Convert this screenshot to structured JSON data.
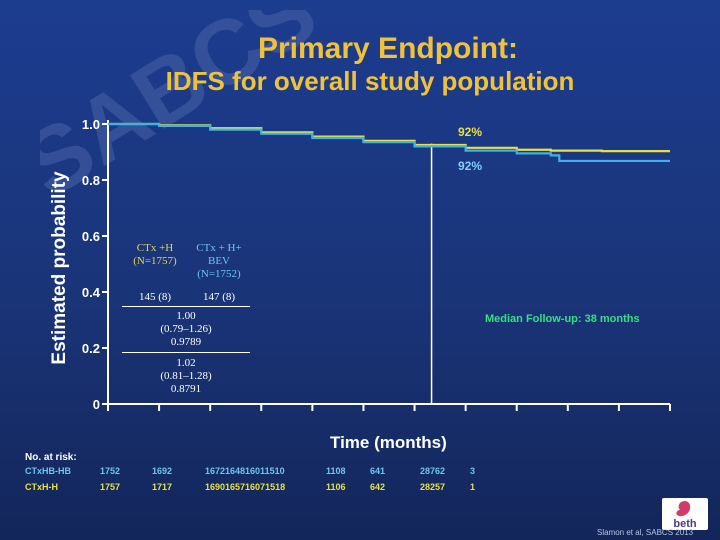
{
  "slide": {
    "title": "Primary Endpoint:",
    "subtitle": "IDFS for overall study population",
    "watermark": "SABCS",
    "credit": "Slamon et al, SABCS 2013",
    "logo_text": "beth"
  },
  "colors": {
    "background": "#1c3c8f",
    "title": "#f0c23a",
    "series_h": "#e8e040",
    "series_bev": "#40b0e8",
    "median_text": "#36e080"
  },
  "chart_data": {
    "type": "line",
    "title": "",
    "xlabel": "Time (months)",
    "ylabel": "Estimated probability",
    "xlim": [
      0,
      66
    ],
    "ylim": [
      0,
      1.0
    ],
    "y_ticks": [
      "0",
      "0.2",
      "0.4",
      "0.6",
      "0.8",
      "1.0"
    ],
    "x_tick_values": [
      0,
      6,
      12,
      18,
      24,
      30,
      36,
      42,
      48,
      54,
      60,
      66
    ],
    "grid": false,
    "series": [
      {
        "name": "CTx +H",
        "color": "#e8e040",
        "x": [
          0,
          3,
          6,
          12,
          18,
          24,
          30,
          36,
          42,
          48,
          52,
          58,
          66
        ],
        "y": [
          1.0,
          1.0,
          0.995,
          0.985,
          0.97,
          0.955,
          0.94,
          0.925,
          0.915,
          0.908,
          0.905,
          0.903,
          0.903
        ]
      },
      {
        "name": "CTx + H+ BEV",
        "color": "#40b0e8",
        "x": [
          0,
          3,
          6,
          12,
          18,
          24,
          30,
          36,
          42,
          48,
          52,
          53,
          58,
          66
        ],
        "y": [
          1.0,
          1.0,
          0.993,
          0.98,
          0.965,
          0.95,
          0.935,
          0.92,
          0.905,
          0.895,
          0.888,
          0.868,
          0.868,
          0.868
        ]
      }
    ],
    "median_followup": 38,
    "annotations": {
      "yellow_pct": "92%",
      "blue_pct": "92%",
      "median_label": "Median Follow-up: 38 months"
    },
    "stats_box": {
      "col1_line1": "CTx +H",
      "col1_line2": "(N=1757)",
      "col2_line1": "CTx + H+",
      "col2_line2": "BEV",
      "col2_line3": "(N=1752)",
      "events1": "145 (8)",
      "events2": "147 (8)",
      "hr1_line1": "1.00",
      "hr1_line2": "(0.79–1.26)",
      "hr1_line3": "0.9789",
      "hr2_line1": "1.02",
      "hr2_line2": "(0.81–1.28)",
      "hr2_line3": "0.8791"
    },
    "at_risk": {
      "title": "No. at risk:",
      "rows": [
        {
          "label": "CTxHB-HB",
          "cells": [
            "1752",
            "1692",
            "1672164816011510",
            "1108",
            "641",
            "28762",
            "3"
          ]
        },
        {
          "label": "CTxH-H",
          "cells": [
            "1757",
            "1717",
            "1690165716071518",
            "1106",
            "642",
            "28257",
            "1"
          ]
        }
      ]
    }
  }
}
